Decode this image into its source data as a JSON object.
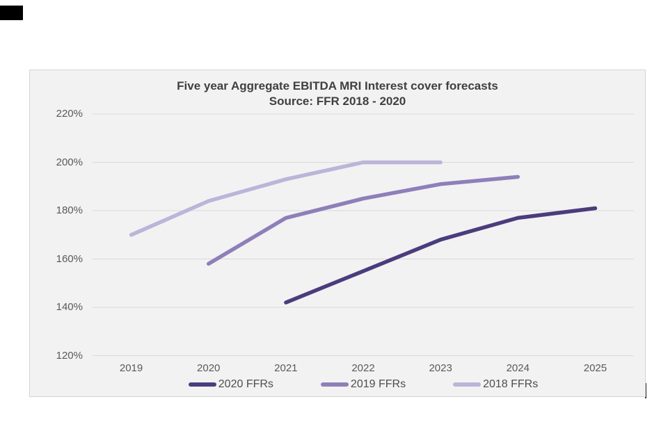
{
  "ui": {
    "page_bg": "#ffffff",
    "panel_bg": "#f2f2f2",
    "panel_border": "#d4d4d4",
    "gridline_color": "#d9d9d9",
    "axis_label_color": "#595959",
    "title_color": "#404040",
    "legend_label_color": "#4d4d4d"
  },
  "chart_data": {
    "type": "line",
    "title": "Five year Aggregate EBITDA MRI Interest cover forecasts",
    "subtitle": "Source: FFR 2018 - 2020",
    "categories": [
      "2019",
      "2020",
      "2021",
      "2022",
      "2023",
      "2024",
      "2025"
    ],
    "y_ticks": [
      "220%",
      "200%",
      "180%",
      "160%",
      "140%",
      "120%"
    ],
    "ylim": [
      120,
      220
    ],
    "y_tick_step": 20,
    "y_unit": "%",
    "grid": "horizontal",
    "legend_position": "bottom",
    "series": [
      {
        "name": "2020 FFRs",
        "color": "#4b3c7d",
        "x": [
          "2021",
          "2022",
          "2023",
          "2024",
          "2025"
        ],
        "values": [
          142,
          155,
          168,
          177,
          181
        ]
      },
      {
        "name": "2019 FFRs",
        "color": "#8e7fba",
        "x": [
          "2020",
          "2021",
          "2022",
          "2023",
          "2024"
        ],
        "values": [
          158,
          177,
          185,
          191,
          194
        ]
      },
      {
        "name": "2018 FFRs",
        "color": "#bdb4d9",
        "x": [
          "2019",
          "2020",
          "2021",
          "2022",
          "2023"
        ],
        "values": [
          170,
          184,
          193,
          200,
          200
        ]
      }
    ]
  }
}
